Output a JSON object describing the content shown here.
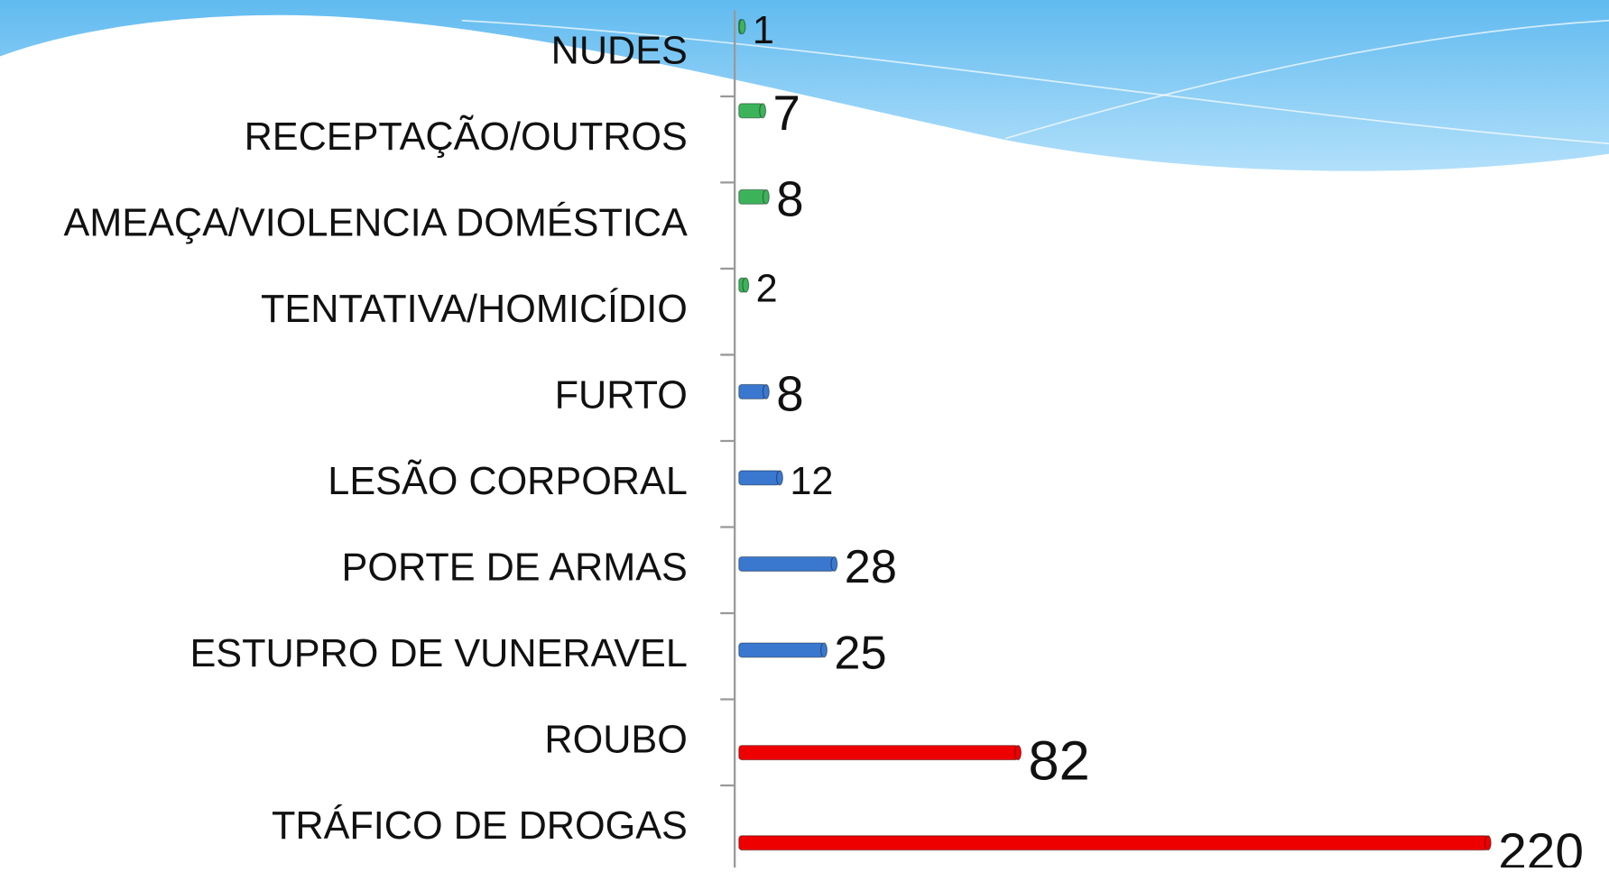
{
  "chart_data": {
    "type": "bar",
    "orientation": "horizontal",
    "categories": [
      "NUDES",
      "RECEPTAÇÃO/OUTROS",
      "AMEAÇA/VIOLENCIA DOMÉSTICA",
      "TENTATIVA/HOMICÍDIO",
      "FURTO",
      "LESÃO CORPORAL",
      "PORTE DE ARMAS",
      "ESTUPRO DE VUNERAVEL",
      "ROUBO",
      "TRÁFICO DE DROGAS"
    ],
    "values": [
      1,
      7,
      8,
      2,
      8,
      12,
      28,
      25,
      82,
      220
    ],
    "colors": [
      "#3cb35a",
      "#3cb35a",
      "#3cb35a",
      "#3cb35a",
      "#3a78d0",
      "#3a78d0",
      "#3a78d0",
      "#3a78d0",
      "#ee0000",
      "#ee0000"
    ],
    "xlim": [
      0,
      220
    ]
  }
}
